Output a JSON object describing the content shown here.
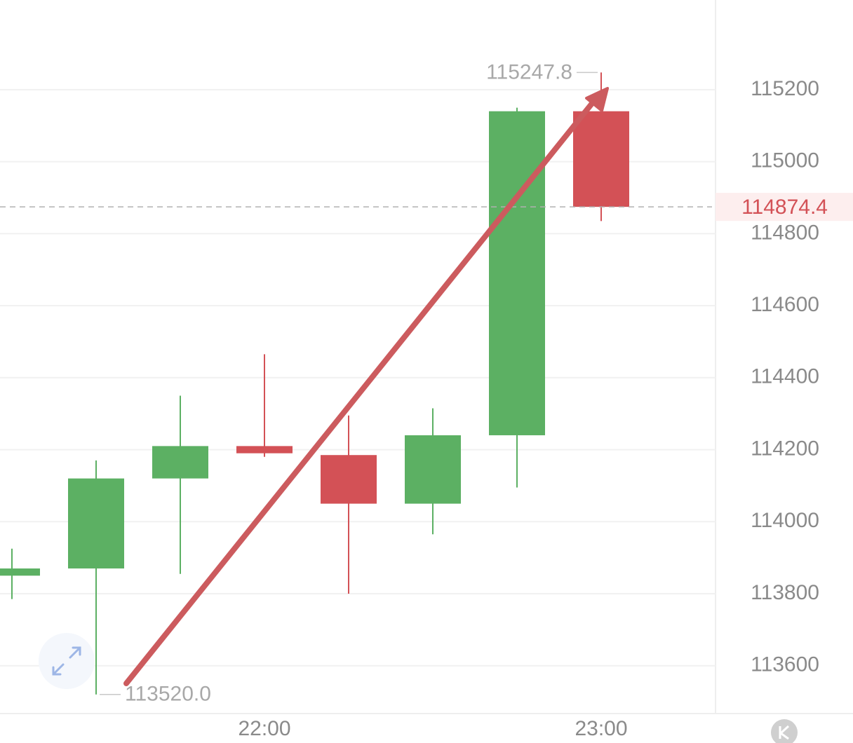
{
  "chart_data": {
    "type": "candlestick",
    "categories": [
      null,
      null,
      null,
      "22:00",
      null,
      null,
      null,
      "23:00"
    ],
    "open": [
      113850,
      113870,
      114120,
      114210,
      114185,
      114050,
      114240,
      115140
    ],
    "high": [
      113925,
      114170,
      114350,
      114465,
      114295,
      114315,
      115150,
      115247.8
    ],
    "low": [
      113785,
      113520,
      113855,
      114180,
      113800,
      113965,
      114095,
      114835
    ],
    "close": [
      113870,
      114120,
      114210,
      114190,
      114050,
      114240,
      115140,
      114874.4
    ],
    "up_color": "#5cb063",
    "down_color": "#d35156",
    "ylim": [
      113467,
      115449
    ],
    "yticks": [
      113600,
      113800,
      114000,
      114200,
      114400,
      114600,
      114800,
      115000,
      115200
    ],
    "grid": true,
    "max_label": "115247.8",
    "min_label": "113520.0",
    "last_price_label": "114874.4"
  }
}
